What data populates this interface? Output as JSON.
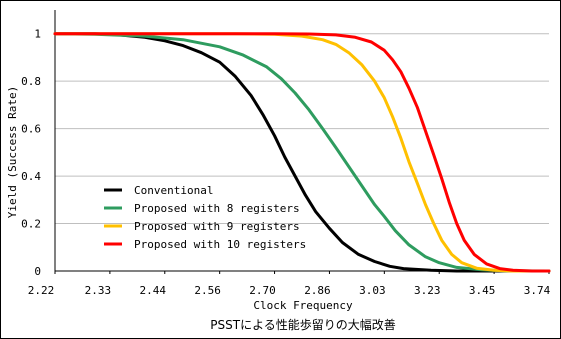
{
  "chart_data": {
    "type": "line",
    "title": "",
    "caption": "PSSTによる性能歩留りの大幅改善",
    "xlabel": "Clock Frequency",
    "ylabel": "Yield (Success Rate)",
    "xlim": [
      2.22,
      3.74
    ],
    "ylim": [
      0,
      1.1
    ],
    "x_ticks": [
      2.22,
      2.33,
      2.44,
      2.56,
      2.7,
      2.86,
      3.03,
      3.23,
      3.45,
      3.74
    ],
    "x_tick_labels": [
      "2.22",
      "2.33",
      "2.44",
      "2.56",
      "2.70",
      "2.86",
      "3.03",
      "3.23",
      "3.45",
      "3.74"
    ],
    "y_ticks": [
      0,
      0.2,
      0.4,
      0.6,
      0.8,
      1
    ],
    "y_tick_labels": [
      "0",
      "0.2",
      "0.4",
      "0.6",
      "0.8",
      "1"
    ],
    "grid": "horizontal",
    "legend_position": "bottom-left",
    "series": [
      {
        "name": "Conventional",
        "color": "#000000",
        "points": [
          [
            2.22,
            1.0
          ],
          [
            2.3,
            1.0
          ],
          [
            2.35,
            0.995
          ],
          [
            2.4,
            0.985
          ],
          [
            2.44,
            0.97
          ],
          [
            2.48,
            0.95
          ],
          [
            2.52,
            0.92
          ],
          [
            2.56,
            0.88
          ],
          [
            2.6,
            0.82
          ],
          [
            2.64,
            0.74
          ],
          [
            2.67,
            0.66
          ],
          [
            2.7,
            0.57
          ],
          [
            2.73,
            0.48
          ],
          [
            2.76,
            0.4
          ],
          [
            2.79,
            0.32
          ],
          [
            2.82,
            0.25
          ],
          [
            2.86,
            0.18
          ],
          [
            2.9,
            0.12
          ],
          [
            2.95,
            0.07
          ],
          [
            3.0,
            0.04
          ],
          [
            3.05,
            0.02
          ],
          [
            3.1,
            0.01
          ],
          [
            3.2,
            0.003
          ],
          [
            3.3,
            0.0
          ],
          [
            3.74,
            0.0
          ]
        ]
      },
      {
        "name": "Proposed with 8 registers",
        "color": "#2e9c5f",
        "points": [
          [
            2.22,
            1.0
          ],
          [
            2.3,
            0.998
          ],
          [
            2.4,
            0.99
          ],
          [
            2.48,
            0.975
          ],
          [
            2.56,
            0.945
          ],
          [
            2.62,
            0.91
          ],
          [
            2.68,
            0.86
          ],
          [
            2.72,
            0.81
          ],
          [
            2.76,
            0.75
          ],
          [
            2.8,
            0.68
          ],
          [
            2.84,
            0.6
          ],
          [
            2.88,
            0.52
          ],
          [
            2.92,
            0.44
          ],
          [
            2.96,
            0.36
          ],
          [
            3.0,
            0.28
          ],
          [
            3.03,
            0.23
          ],
          [
            3.07,
            0.17
          ],
          [
            3.12,
            0.11
          ],
          [
            3.18,
            0.06
          ],
          [
            3.23,
            0.035
          ],
          [
            3.3,
            0.015
          ],
          [
            3.4,
            0.005
          ],
          [
            3.5,
            0.001
          ],
          [
            3.74,
            0.0
          ]
        ]
      },
      {
        "name": "Proposed with 9 registers",
        "color": "#ffc000",
        "points": [
          [
            2.22,
            1.0
          ],
          [
            2.6,
            1.0
          ],
          [
            2.7,
            0.998
          ],
          [
            2.78,
            0.99
          ],
          [
            2.84,
            0.975
          ],
          [
            2.88,
            0.955
          ],
          [
            2.92,
            0.92
          ],
          [
            2.96,
            0.87
          ],
          [
            3.0,
            0.8
          ],
          [
            3.03,
            0.73
          ],
          [
            3.06,
            0.65
          ],
          [
            3.09,
            0.56
          ],
          [
            3.12,
            0.46
          ],
          [
            3.15,
            0.37
          ],
          [
            3.18,
            0.28
          ],
          [
            3.21,
            0.2
          ],
          [
            3.24,
            0.13
          ],
          [
            3.28,
            0.07
          ],
          [
            3.32,
            0.035
          ],
          [
            3.38,
            0.012
          ],
          [
            3.45,
            0.003
          ],
          [
            3.55,
            0.0
          ],
          [
            3.74,
            0.0
          ]
        ]
      },
      {
        "name": "Proposed with 10 registers",
        "color": "#ff0000",
        "points": [
          [
            2.22,
            1.0
          ],
          [
            2.7,
            1.0
          ],
          [
            2.8,
            0.999
          ],
          [
            2.88,
            0.995
          ],
          [
            2.94,
            0.985
          ],
          [
            2.99,
            0.965
          ],
          [
            3.03,
            0.93
          ],
          [
            3.06,
            0.89
          ],
          [
            3.09,
            0.84
          ],
          [
            3.12,
            0.77
          ],
          [
            3.15,
            0.69
          ],
          [
            3.18,
            0.59
          ],
          [
            3.21,
            0.49
          ],
          [
            3.24,
            0.39
          ],
          [
            3.27,
            0.29
          ],
          [
            3.3,
            0.2
          ],
          [
            3.33,
            0.13
          ],
          [
            3.37,
            0.07
          ],
          [
            3.42,
            0.03
          ],
          [
            3.48,
            0.01
          ],
          [
            3.55,
            0.003
          ],
          [
            3.65,
            0.0
          ],
          [
            3.74,
            0.0
          ]
        ]
      }
    ]
  }
}
